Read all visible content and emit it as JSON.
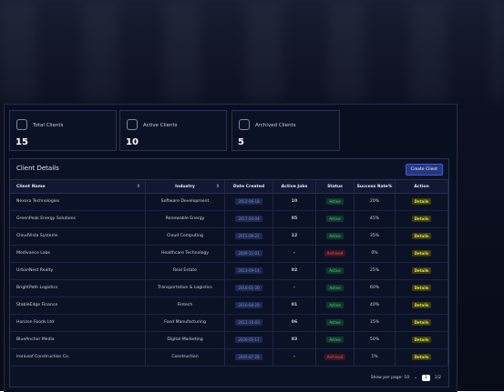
{
  "cards": [
    {
      "label": "Total Clients",
      "value": 15
    },
    {
      "label": "Active Clients",
      "value": 10
    },
    {
      "label": "Archived Clients",
      "value": 5
    }
  ],
  "table": {
    "title": "Client Details",
    "button": "Create Client",
    "columns": [
      "Client Name",
      "Industry",
      "Date Created",
      "Active Jobs",
      "Status",
      "Success Rate%",
      "Action"
    ],
    "rows": [
      [
        "Nexora Technologies",
        "Software Development",
        "2012-06-18",
        "10",
        "Active",
        "20%",
        "Details"
      ],
      [
        "GreenPeak Energy Solutions",
        "Renewable Energy",
        "2017-04-04",
        "05",
        "Active",
        "45%",
        "Details"
      ],
      [
        "CloudVista Systems",
        "Cloud Computing",
        "2015-09-22",
        "12",
        "Active",
        "35%",
        "Details"
      ],
      [
        "Medivance Labs",
        "Healthcare Technology",
        "2009-11-01",
        "-",
        "Archived",
        "0%",
        "Details"
      ],
      [
        "UrbanNest Realty",
        "Real Estate",
        "2013-09-14",
        "02",
        "Active",
        "25%",
        "Details"
      ],
      [
        "BrightPath Logistics",
        "Transportation & Logistics",
        "2018-01-30",
        "-",
        "Active",
        "60%",
        "Details"
      ],
      [
        "StableEdge Finance",
        "Fintech",
        "2016-04-29",
        "01",
        "Active",
        "40%",
        "Details"
      ],
      [
        "Horizon Foods Ltd",
        "Food Manufacturing",
        "2011-10-03",
        "06",
        "Active",
        "15%",
        "Details"
      ],
      [
        "BlueAnchor Media",
        "Digital Marketing",
        "2020-05-17",
        "03",
        "Active",
        "50%",
        "Details"
      ],
      [
        "IronLeaf Construction Co.",
        "Construction",
        "2005-07-28",
        "-",
        "Archived",
        "1%",
        "Details"
      ]
    ]
  },
  "pagination": {
    "label": "Show per page: 10",
    "page": "1",
    "pages": "1/2"
  }
}
